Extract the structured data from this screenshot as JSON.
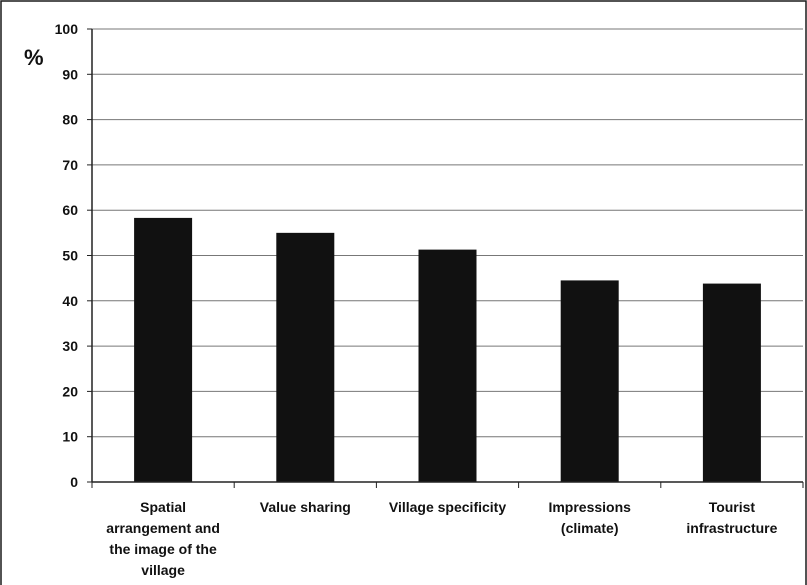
{
  "chart_data": {
    "type": "bar",
    "title": "",
    "xlabel": "",
    "ylabel": "%",
    "ylim": [
      0,
      100
    ],
    "yticks": [
      0,
      10,
      20,
      30,
      40,
      50,
      60,
      70,
      80,
      90,
      100
    ],
    "grid": true,
    "legend": "none",
    "bar_color": "#111111",
    "categories": [
      [
        "Spatial",
        "arrangement and",
        "the image of the",
        "village"
      ],
      [
        "Value sharing"
      ],
      [
        "Village specificity"
      ],
      [
        "Impressions",
        "(climate)"
      ],
      [
        "Tourist",
        "infrastructure"
      ]
    ],
    "values": [
      58.3,
      55.0,
      51.3,
      44.5,
      43.8
    ]
  }
}
